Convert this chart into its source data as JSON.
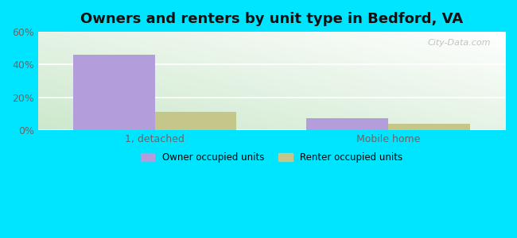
{
  "title": "Owners and renters by unit type in Bedford, VA",
  "categories": [
    "1, detached",
    "Mobile home"
  ],
  "owner_values": [
    46,
    7
  ],
  "renter_values": [
    11,
    4
  ],
  "owner_color": "#b39ddb",
  "renter_color": "#c5c68a",
  "ylim": [
    0,
    60
  ],
  "yticks": [
    0,
    20,
    40,
    60
  ],
  "ytick_labels": [
    "0%",
    "20%",
    "40%",
    "60%"
  ],
  "legend_owner": "Owner occupied units",
  "legend_renter": "Renter occupied units",
  "outer_bg": "#00e5ff",
  "bg_bottom_left": "#cce8cc",
  "bg_top_right": "#f5fff5",
  "title_fontsize": 13,
  "bar_width": 0.35,
  "watermark": "City-Data.com",
  "grid_color": "#ffffff",
  "tick_color": "#666666"
}
